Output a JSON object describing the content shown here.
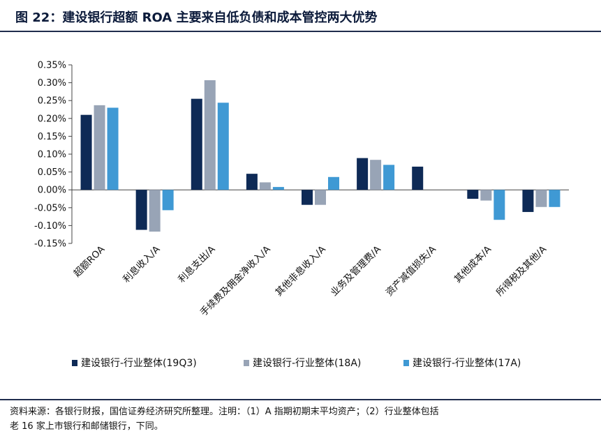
{
  "header": {
    "title": "图 22：建设银行超额 ROA 主要来自低负债和成本管控两大优势"
  },
  "footer": {
    "source_line1": "资料来源：各银行财报，国信证券经济研究所整理。注明：（1）A 指期初期末平均资产；（2）行业整体包括",
    "source_line2": "老 16 家上市银行和邮储银行，下同。"
  },
  "colors": {
    "series_19Q3": "#0e2a56",
    "series_18A": "#98a4b6",
    "series_17A": "#3f99d4",
    "rule": "#1f2d4d"
  },
  "chart_data": {
    "type": "bar",
    "title": "",
    "xlabel": "",
    "ylabel": "",
    "categories": [
      "超额ROA",
      "利息收入/A",
      "利息支出/A",
      "手续费及佣金净收入/A",
      "其他非息收入/A",
      "业务及管理费/A",
      "资产减值损失/A",
      "其他成本/A",
      "所得税及其他/A"
    ],
    "series": [
      {
        "name": "建设银行-行业整体(19Q3)",
        "values": [
          0.21,
          -0.112,
          0.255,
          0.045,
          -0.042,
          0.089,
          0.065,
          -0.025,
          -0.062
        ]
      },
      {
        "name": "建设银行-行业整体(18A)",
        "values": [
          0.237,
          -0.117,
          0.307,
          0.021,
          -0.042,
          0.084,
          null,
          -0.03,
          -0.048
        ]
      },
      {
        "name": "建设银行-行业整体(17A)",
        "values": [
          0.23,
          -0.057,
          0.244,
          0.008,
          0.036,
          0.07,
          null,
          -0.084,
          -0.048
        ]
      }
    ],
    "ylim": [
      -0.15,
      0.35
    ],
    "yticks": [
      "0.35%",
      "0.30%",
      "0.25%",
      "0.20%",
      "0.15%",
      "0.10%",
      "0.05%",
      "0.00%",
      "-0.05%",
      "-0.10%",
      "-0.15%"
    ],
    "unit": "%",
    "grid": false,
    "legend_position": "bottom"
  }
}
